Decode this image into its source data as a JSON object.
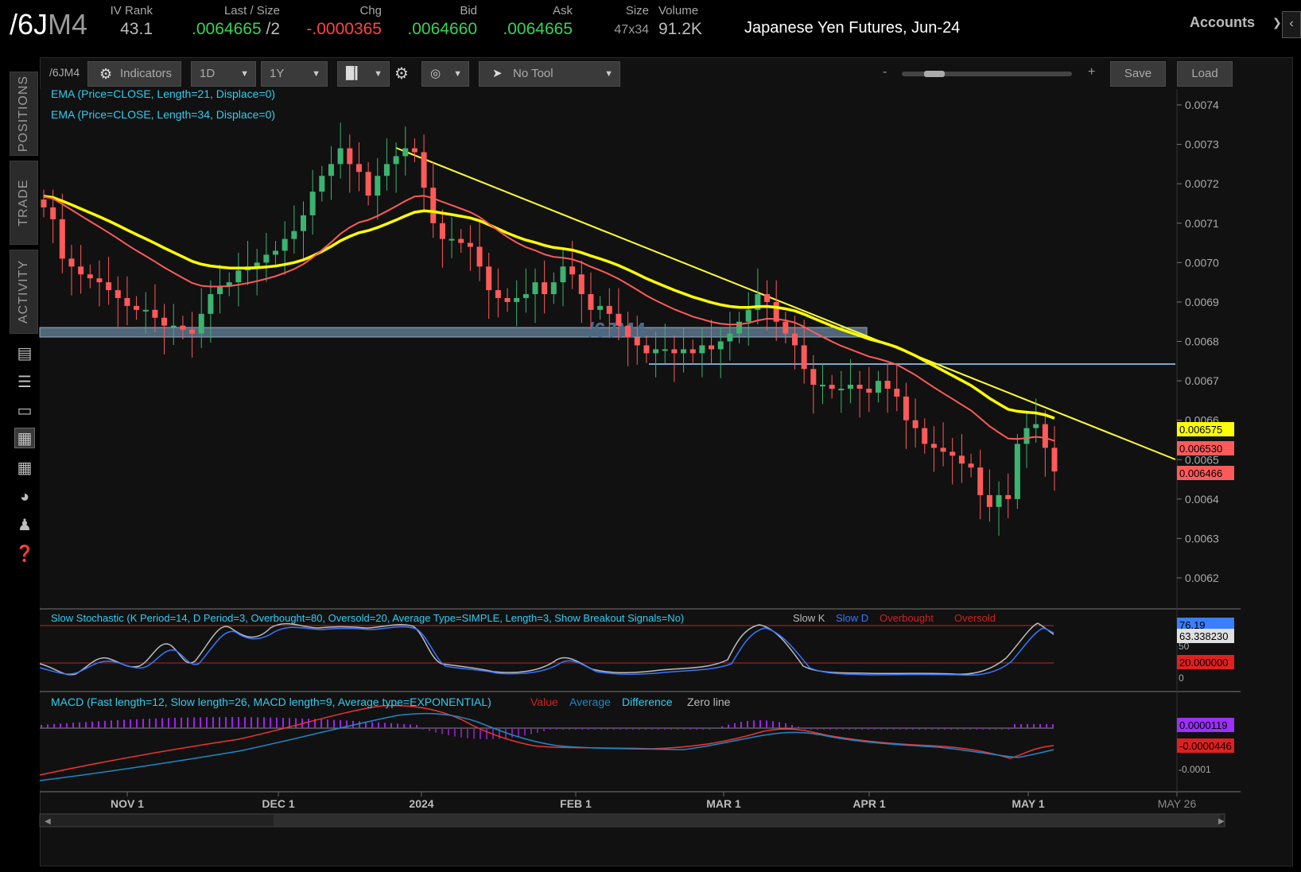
{
  "quote": {
    "symbol_main": "/6J",
    "symbol_sub": "M4",
    "iv_rank_label": "IV Rank",
    "iv_rank": "43.1",
    "last_label": "Last / Size",
    "last": ".0064665",
    "last_size": "/2",
    "chg_label": "Chg",
    "chg": "-.0000365",
    "bid_label": "Bid",
    "bid": ".0064660",
    "ask_label": "Ask",
    "ask": ".0064665",
    "size_label": "Size",
    "size": "47x34",
    "volume_label": "Volume",
    "volume": "91.2K",
    "instrument": "Japanese Yen Futures, Jun-24",
    "accounts": "Accounts",
    "colors": {
      "up": "#39d353",
      "down": "#ff4444"
    }
  },
  "side_tabs": [
    "POSITIONS",
    "TRADE",
    "ACTIVITY"
  ],
  "side_icons": [
    "news-icon",
    "list-icon",
    "tv-icon",
    "chart-icon",
    "grid-icon",
    "gauge-icon",
    "people-icon",
    "help-icon"
  ],
  "toolbar": {
    "symbol": "/6JM4",
    "indicators": "Indicators",
    "aggregation": "1D",
    "range": "1Y",
    "tool": "No Tool",
    "zoom_minus": "-",
    "zoom_plus": "+",
    "save": "Save",
    "load": "Load"
  },
  "studies": {
    "ema21": "EMA (Price=CLOSE, Length=21, Displace=0)",
    "ema34": "EMA (Price=CLOSE, Length=34, Displace=0)",
    "watermark": "/6JM4",
    "stoch": "Slow Stochastic (K Period=14, D Period=3, Overbought=80, Oversold=20, Average Type=SIMPLE, Length=3, Show Breakout Signals=No)",
    "stoch_legend": [
      "Slow K",
      "Slow D",
      "Overbought",
      "Oversold"
    ],
    "macd": "MACD (Fast length=12, Slow length=26, MACD length=9, Average type=EXPONENTIAL)",
    "macd_legend": [
      "Value",
      "Average",
      "Difference",
      "Zero line"
    ]
  },
  "price_axis": {
    "ticks": [
      "0.0074",
      "0.0073",
      "0.0072",
      "0.0071",
      "0.0070",
      "0.0069",
      "0.0068",
      "0.0067",
      "0.0066",
      "0.0065",
      "0.0064",
      "0.0063",
      "0.0062"
    ],
    "tags": [
      {
        "label": "0.006575",
        "color": "#ffff00",
        "text_color": "#000"
      },
      {
        "label": "0.006530",
        "color": "#ff5a5a",
        "text_color": "#000"
      },
      {
        "label": "0.006466",
        "color": "#ff5a5a",
        "text_color": "#000"
      }
    ]
  },
  "stoch_axis": {
    "ticks": [
      "50",
      "0"
    ],
    "tags": [
      {
        "label": "76.19",
        "color": "#3a7fff",
        "text_color": "#000"
      },
      {
        "label": "63.338230",
        "color": "#e0e0e0",
        "text_color": "#000"
      },
      {
        "label": "20.000000",
        "color": "#e02020",
        "text_color": "#000"
      }
    ]
  },
  "macd_axis": {
    "ticks": [
      "-0.0001"
    ],
    "tags": [
      {
        "label": "0.0000119",
        "color": "#9b30ff",
        "text_color": "#000"
      },
      {
        "label": "-0.0000446",
        "color": "#e02020",
        "text_color": "#000"
      }
    ]
  },
  "time_axis": [
    "NOV 1",
    "DEC 1",
    "2024",
    "FEB 1",
    "MAR 1",
    "APR 1",
    "MAY 1",
    "MAY 26"
  ],
  "chart_data": {
    "type": "candlestick",
    "y_range": [
      0.00612,
      0.00752
    ],
    "closes": [
      0.00714,
      0.00711,
      0.00701,
      0.00699,
      0.00697,
      0.00696,
      0.00695,
      0.00693,
      0.00691,
      0.00689,
      0.00688,
      0.00688,
      0.00686,
      0.00684,
      0.00684,
      0.00683,
      0.00682,
      0.00687,
      0.00692,
      0.00694,
      0.00695,
      0.00698,
      0.00699,
      0.007,
      0.00702,
      0.00703,
      0.00706,
      0.00708,
      0.00712,
      0.00718,
      0.00722,
      0.00725,
      0.00729,
      0.00725,
      0.00723,
      0.00717,
      0.00722,
      0.00725,
      0.00727,
      0.00729,
      0.00728,
      0.00719,
      0.0071,
      0.00706,
      0.00706,
      0.00705,
      0.00704,
      0.00699,
      0.00693,
      0.00691,
      0.0069,
      0.00691,
      0.00692,
      0.00695,
      0.00692,
      0.00695,
      0.00699,
      0.00697,
      0.00692,
      0.00688,
      0.00689,
      0.00687,
      0.00684,
      0.00681,
      0.00679,
      0.00677,
      0.00678,
      0.00678,
      0.00677,
      0.00678,
      0.00677,
      0.00679,
      0.00678,
      0.0068,
      0.00682,
      0.00685,
      0.00688,
      0.00692,
      0.0069,
      0.00685,
      0.00682,
      0.00679,
      0.00673,
      0.00669,
      0.00669,
      0.00668,
      0.00668,
      0.00669,
      0.00668,
      0.00667,
      0.0067,
      0.00668,
      0.00666,
      0.0066,
      0.00658,
      0.00654,
      0.00653,
      0.00652,
      0.00651,
      0.00649,
      0.00648,
      0.00641,
      0.00638,
      0.00641,
      0.0064,
      0.00654,
      0.00658,
      0.00659,
      0.00653,
      0.00647
    ]
  }
}
